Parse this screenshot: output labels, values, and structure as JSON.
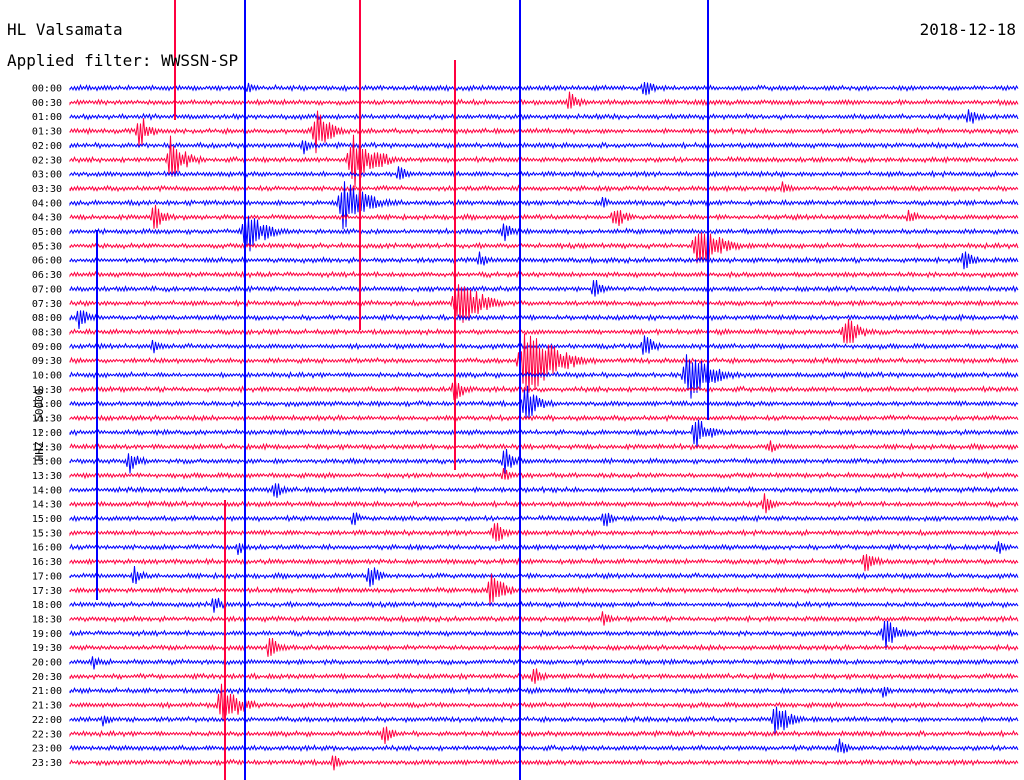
{
  "header": {
    "station": "HL Valsamata",
    "filter": "Applied filter: WWSSN-SP",
    "date": "2018-12-18"
  },
  "chart_data": {
    "type": "line",
    "title": "HL Valsamata",
    "subtitle": "Applied filter: WWSSN-SP",
    "ylabel": "HHZ - 50000",
    "xlabel": "",
    "grid": false,
    "legend": "none",
    "colors": [
      "#0000ff",
      "#ff0040"
    ],
    "rows": [
      "00:00",
      "00:30",
      "01:00",
      "01:30",
      "02:00",
      "02:30",
      "03:00",
      "03:30",
      "04:00",
      "04:30",
      "05:00",
      "05:30",
      "06:00",
      "06:30",
      "07:00",
      "07:30",
      "08:00",
      "08:30",
      "09:00",
      "09:30",
      "10:00",
      "10:30",
      "11:00",
      "11:30",
      "12:00",
      "12:30",
      "13:00",
      "13:30",
      "14:00",
      "14:30",
      "15:00",
      "15:30",
      "16:00",
      "16:30",
      "17:00",
      "17:30",
      "18:00",
      "18:30",
      "19:00",
      "19:30",
      "20:00",
      "20:30",
      "21:00",
      "21:30",
      "22:00",
      "22:30",
      "23:00",
      "23:30"
    ]
  }
}
